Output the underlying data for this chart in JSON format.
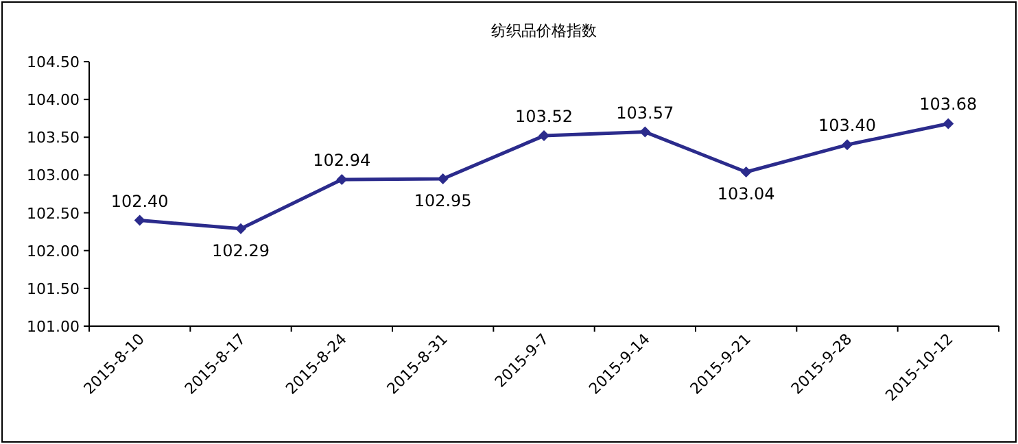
{
  "chart_data": {
    "type": "line",
    "title": "纺织品价格指数",
    "categories": [
      "2015-8-10",
      "2015-8-17",
      "2015-8-24",
      "2015-8-31",
      "2015-9-7",
      "2015-9-14",
      "2015-9-21",
      "2015-9-28",
      "2015-10-12"
    ],
    "series": [
      {
        "color": "#2b2b8c",
        "values": [
          102.4,
          102.29,
          102.94,
          102.95,
          103.52,
          103.57,
          103.04,
          103.4,
          103.68
        ],
        "value_labels": [
          "102.40",
          "102.29",
          "102.94",
          "102.95",
          "103.52",
          "103.57",
          "103.04",
          "103.40",
          "103.68"
        ]
      }
    ],
    "ylim": [
      101.0,
      104.5
    ],
    "yticks": [
      {
        "value": 101.0,
        "label": "101.00"
      },
      {
        "value": 101.5,
        "label": "101.50"
      },
      {
        "value": 102.0,
        "label": "102.00"
      },
      {
        "value": 102.5,
        "label": "102.50"
      },
      {
        "value": 103.0,
        "label": "103.00"
      },
      {
        "value": 103.5,
        "label": "103.50"
      },
      {
        "value": 104.0,
        "label": "104.00"
      },
      {
        "value": 104.5,
        "label": "104.50"
      }
    ],
    "marker": "diamond",
    "line_style": "solid",
    "grid": false
  }
}
